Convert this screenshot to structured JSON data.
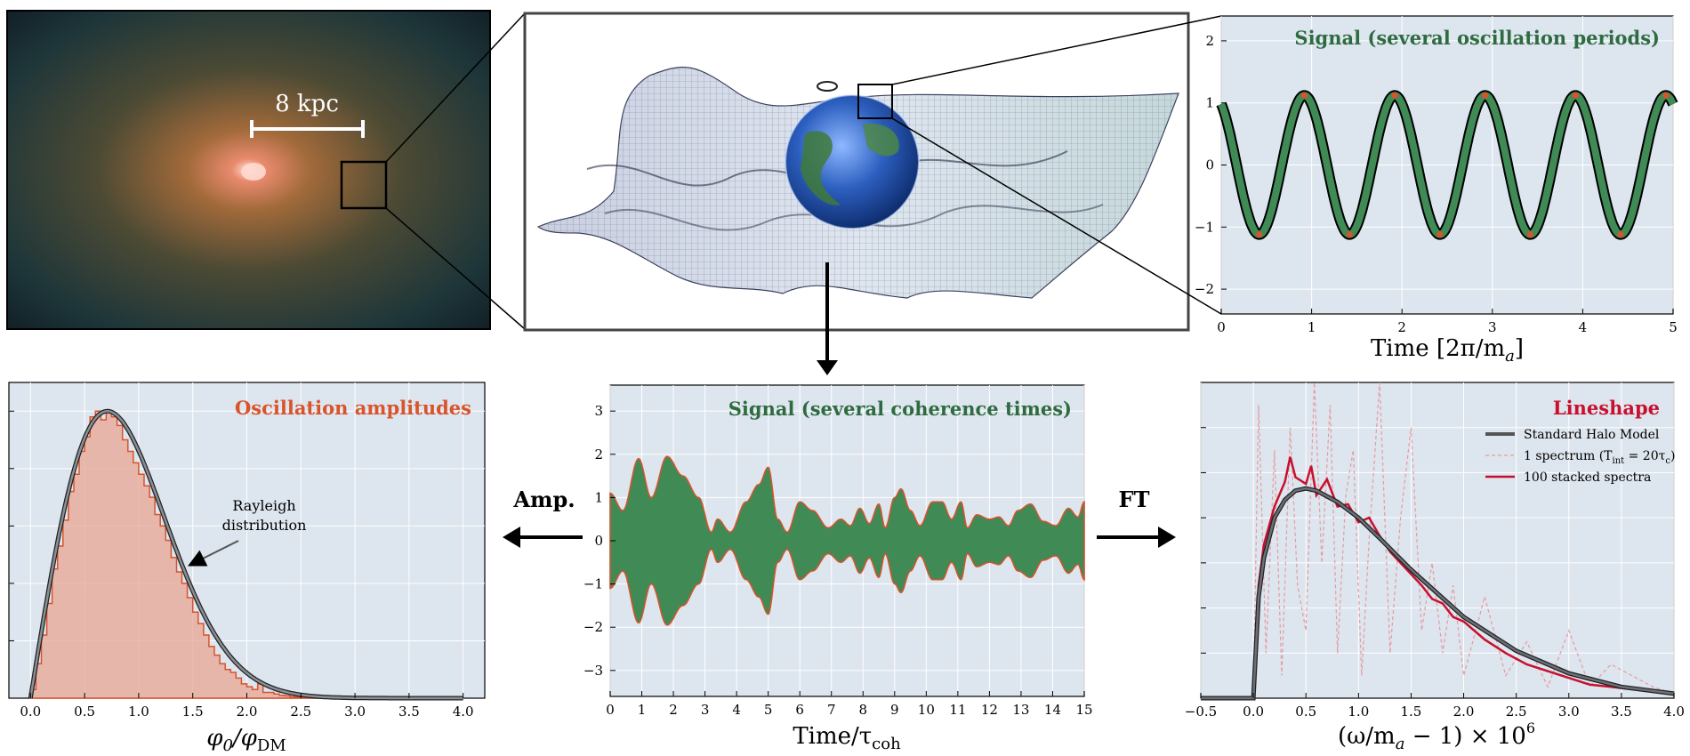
{
  "colors": {
    "panel_bg": "#dde5ee",
    "green": "#3f8a55",
    "green_dark": "#2e6b40",
    "orange": "#d9532b",
    "red": "#c8102e",
    "salmon": "#e8a594",
    "gray_line": "#555555",
    "grid": "#ffffff"
  },
  "galaxy": {
    "scale_label": "8 kpc"
  },
  "arrows": {
    "amp_label": "Amp.",
    "ft_label": "FT"
  },
  "panels": {
    "signal_periods": {
      "title": "Signal (several oscillation periods)",
      "xlabel": "Time [2π/m",
      "xlabel_sub": "a",
      "xlabel_end": "]",
      "xticks": [
        "0",
        "1",
        "2",
        "3",
        "4",
        "5"
      ],
      "yticks": [
        "2",
        "1",
        "0",
        "−1",
        "−2"
      ]
    },
    "amplitudes": {
      "title": "Oscillation amplitudes",
      "annotation_line1": "Rayleigh",
      "annotation_line2": "distribution",
      "xlabel": "φ",
      "xlabel_sub0": "0",
      "xlabel_mid": "/φ",
      "xlabel_sub1": "DM",
      "xticks": [
        "0.0",
        "0.5",
        "1.0",
        "1.5",
        "2.0",
        "2.5",
        "3.0",
        "3.5",
        "4.0"
      ]
    },
    "signal_coherence": {
      "title": "Signal (several coherence times)",
      "xlabel": "Time/τ",
      "xlabel_sub": "coh",
      "xticks": [
        "0",
        "1",
        "2",
        "3",
        "4",
        "5",
        "6",
        "7",
        "8",
        "9",
        "10",
        "11",
        "12",
        "13",
        "14",
        "15"
      ],
      "yticks": [
        "3",
        "2",
        "1",
        "0",
        "−1",
        "−2",
        "−3"
      ]
    },
    "lineshape": {
      "title": "Lineshape",
      "legend": [
        "Standard Halo Model",
        "1 spectrum (T",
        "100 stacked spectra"
      ],
      "legend_sub_int": "int",
      "legend_rest": " = 20τ",
      "legend_sub_c": "c",
      "legend_close": ")",
      "xlabel": "(ω/m",
      "xlabel_sub": "a",
      "xlabel_rest": " − 1) × 10",
      "xlabel_sup": "6",
      "xticks": [
        "−0.5",
        "0.0",
        "0.5",
        "1.0",
        "1.5",
        "2.0",
        "2.5",
        "3.0",
        "3.5",
        "4.0"
      ]
    }
  },
  "chart_data": [
    {
      "type": "line",
      "title": "Signal (several oscillation periods)",
      "xlabel": "Time [2π/m_a]",
      "ylabel": "",
      "xlim": [
        0,
        5
      ],
      "ylim": [
        -2.4,
        2.4
      ],
      "series": [
        {
          "x": [
            0,
            0.42,
            0.92,
            1.42,
            1.92,
            2.42,
            2.92,
            3.42,
            3.92,
            4.42,
            4.92,
            5
          ],
          "values": [
            1.0,
            -1.12,
            1.12,
            -1.12,
            1.12,
            -1.12,
            1.12,
            -1.12,
            1.12,
            -1.12,
            1.12,
            1.0
          ]
        }
      ],
      "peaks_marked": [
        0.92,
        1.92,
        2.92,
        3.92,
        4.92
      ],
      "troughs_marked": [
        0.42,
        1.42,
        2.42,
        3.42,
        4.42
      ],
      "amplitude": 1.12,
      "period": 1.0
    },
    {
      "type": "bar",
      "title": "Oscillation amplitudes",
      "xlabel": "φ0/φDM",
      "ylabel": "",
      "xlim": [
        -0.2,
        4.2
      ],
      "annotation": "Rayleigh distribution",
      "histogram_bin_width": 0.05,
      "histogram_relative_heights": [
        0.03,
        0.12,
        0.22,
        0.33,
        0.45,
        0.53,
        0.62,
        0.72,
        0.78,
        0.86,
        0.91,
        0.98,
        1.0,
        0.97,
        1.0,
        0.98,
        0.95,
        0.9,
        0.86,
        0.82,
        0.78,
        0.74,
        0.7,
        0.64,
        0.6,
        0.55,
        0.49,
        0.44,
        0.4,
        0.35,
        0.3,
        0.26,
        0.22,
        0.18,
        0.15,
        0.12,
        0.1,
        0.09,
        0.07,
        0.05,
        0.04,
        0.03,
        0.05,
        0.02,
        0.02,
        0.015,
        0.01,
        0.008,
        0.005,
        0.004,
        0.003,
        0.002,
        0.002,
        0.001,
        0.001,
        0.0005,
        0.0005,
        0.0,
        0.0,
        0.0
      ],
      "curve": "Rayleigh, peak at x ≈ 0.71"
    },
    {
      "type": "area",
      "title": "Signal (several coherence times)",
      "xlabel": "Time/τ_coh",
      "ylabel": "",
      "xlim": [
        0,
        15
      ],
      "ylim": [
        -3.6,
        3.6
      ],
      "envelope_x": [
        0,
        0.4,
        0.9,
        1.3,
        1.8,
        2.3,
        2.8,
        3.2,
        3.4,
        3.8,
        4.3,
        4.7,
        5.0,
        5.3,
        5.6,
        6.0,
        6.4,
        6.9,
        7.3,
        7.6,
        7.9,
        8.2,
        8.5,
        8.7,
        9.0,
        9.2,
        9.5,
        9.8,
        10.2,
        10.5,
        10.8,
        11.1,
        11.3,
        11.6,
        12.0,
        12.3,
        12.6,
        12.9,
        13.3,
        13.7,
        14.1,
        14.5,
        14.8,
        15.0
      ],
      "envelope_y": [
        1.1,
        0.7,
        1.9,
        1.0,
        1.95,
        1.5,
        1.0,
        0.2,
        0.5,
        0.2,
        0.9,
        1.3,
        1.7,
        0.5,
        0.2,
        0.9,
        0.7,
        0.3,
        0.5,
        0.35,
        0.75,
        0.4,
        0.85,
        0.3,
        1.0,
        1.2,
        0.7,
        0.35,
        0.9,
        0.9,
        0.5,
        0.9,
        0.3,
        0.6,
        0.5,
        0.55,
        0.35,
        0.7,
        0.85,
        0.45,
        0.35,
        0.75,
        0.55,
        0.9
      ]
    },
    {
      "type": "line",
      "title": "Lineshape",
      "xlabel": "(ω/m_a − 1) × 10^6",
      "ylabel": "",
      "xlim": [
        -0.5,
        4.0
      ],
      "ylim": [
        0,
        1.4
      ],
      "series": [
        {
          "name": "Standard Halo Model",
          "x": [
            -0.5,
            0.0,
            0.05,
            0.1,
            0.2,
            0.3,
            0.4,
            0.5,
            0.6,
            0.8,
            1.0,
            1.2,
            1.5,
            2.0,
            2.5,
            3.0,
            3.5,
            4.0
          ],
          "values": [
            0,
            0,
            0.45,
            0.62,
            0.8,
            0.88,
            0.92,
            0.93,
            0.92,
            0.87,
            0.8,
            0.71,
            0.57,
            0.36,
            0.21,
            0.11,
            0.05,
            0.02
          ]
        },
        {
          "name": "1 spectrum (T_int = 20τ_c)",
          "x": [
            -0.5,
            0.0,
            0.05,
            0.12,
            0.2,
            0.27,
            0.35,
            0.42,
            0.5,
            0.58,
            0.65,
            0.73,
            0.8,
            0.88,
            0.95,
            1.03,
            1.1,
            1.2,
            1.3,
            1.4,
            1.5,
            1.6,
            1.7,
            1.8,
            1.9,
            2.0,
            2.2,
            2.4,
            2.6,
            2.8,
            3.0,
            3.2,
            3.4,
            3.6,
            3.8,
            4.0
          ],
          "values": [
            0,
            0,
            1.3,
            0.2,
            1.1,
            0.1,
            1.2,
            0.5,
            0.3,
            1.4,
            0.6,
            1.3,
            0.2,
            0.9,
            1.1,
            0.1,
            0.7,
            1.4,
            0.2,
            0.8,
            1.2,
            0.3,
            0.6,
            0.2,
            0.5,
            0.1,
            0.45,
            0.1,
            0.25,
            0.05,
            0.3,
            0.05,
            0.15,
            0.1,
            0.05,
            0.02
          ]
        },
        {
          "name": "100 stacked spectra",
          "x": [
            -0.5,
            0.0,
            0.05,
            0.1,
            0.2,
            0.3,
            0.35,
            0.4,
            0.5,
            0.55,
            0.6,
            0.7,
            0.8,
            0.9,
            1.0,
            1.1,
            1.2,
            1.3,
            1.4,
            1.5,
            1.6,
            1.7,
            1.8,
            1.9,
            2.0,
            2.2,
            2.4,
            2.6,
            2.8,
            3.0,
            3.2,
            3.4,
            3.6,
            3.8,
            4.0
          ],
          "values": [
            0,
            0,
            0.5,
            0.68,
            0.85,
            0.96,
            1.07,
            0.98,
            0.95,
            1.03,
            0.9,
            0.97,
            0.85,
            0.86,
            0.78,
            0.8,
            0.72,
            0.65,
            0.6,
            0.55,
            0.5,
            0.44,
            0.42,
            0.36,
            0.34,
            0.26,
            0.2,
            0.15,
            0.12,
            0.09,
            0.06,
            0.05,
            0.04,
            0.03,
            0.02
          ]
        }
      ]
    }
  ]
}
